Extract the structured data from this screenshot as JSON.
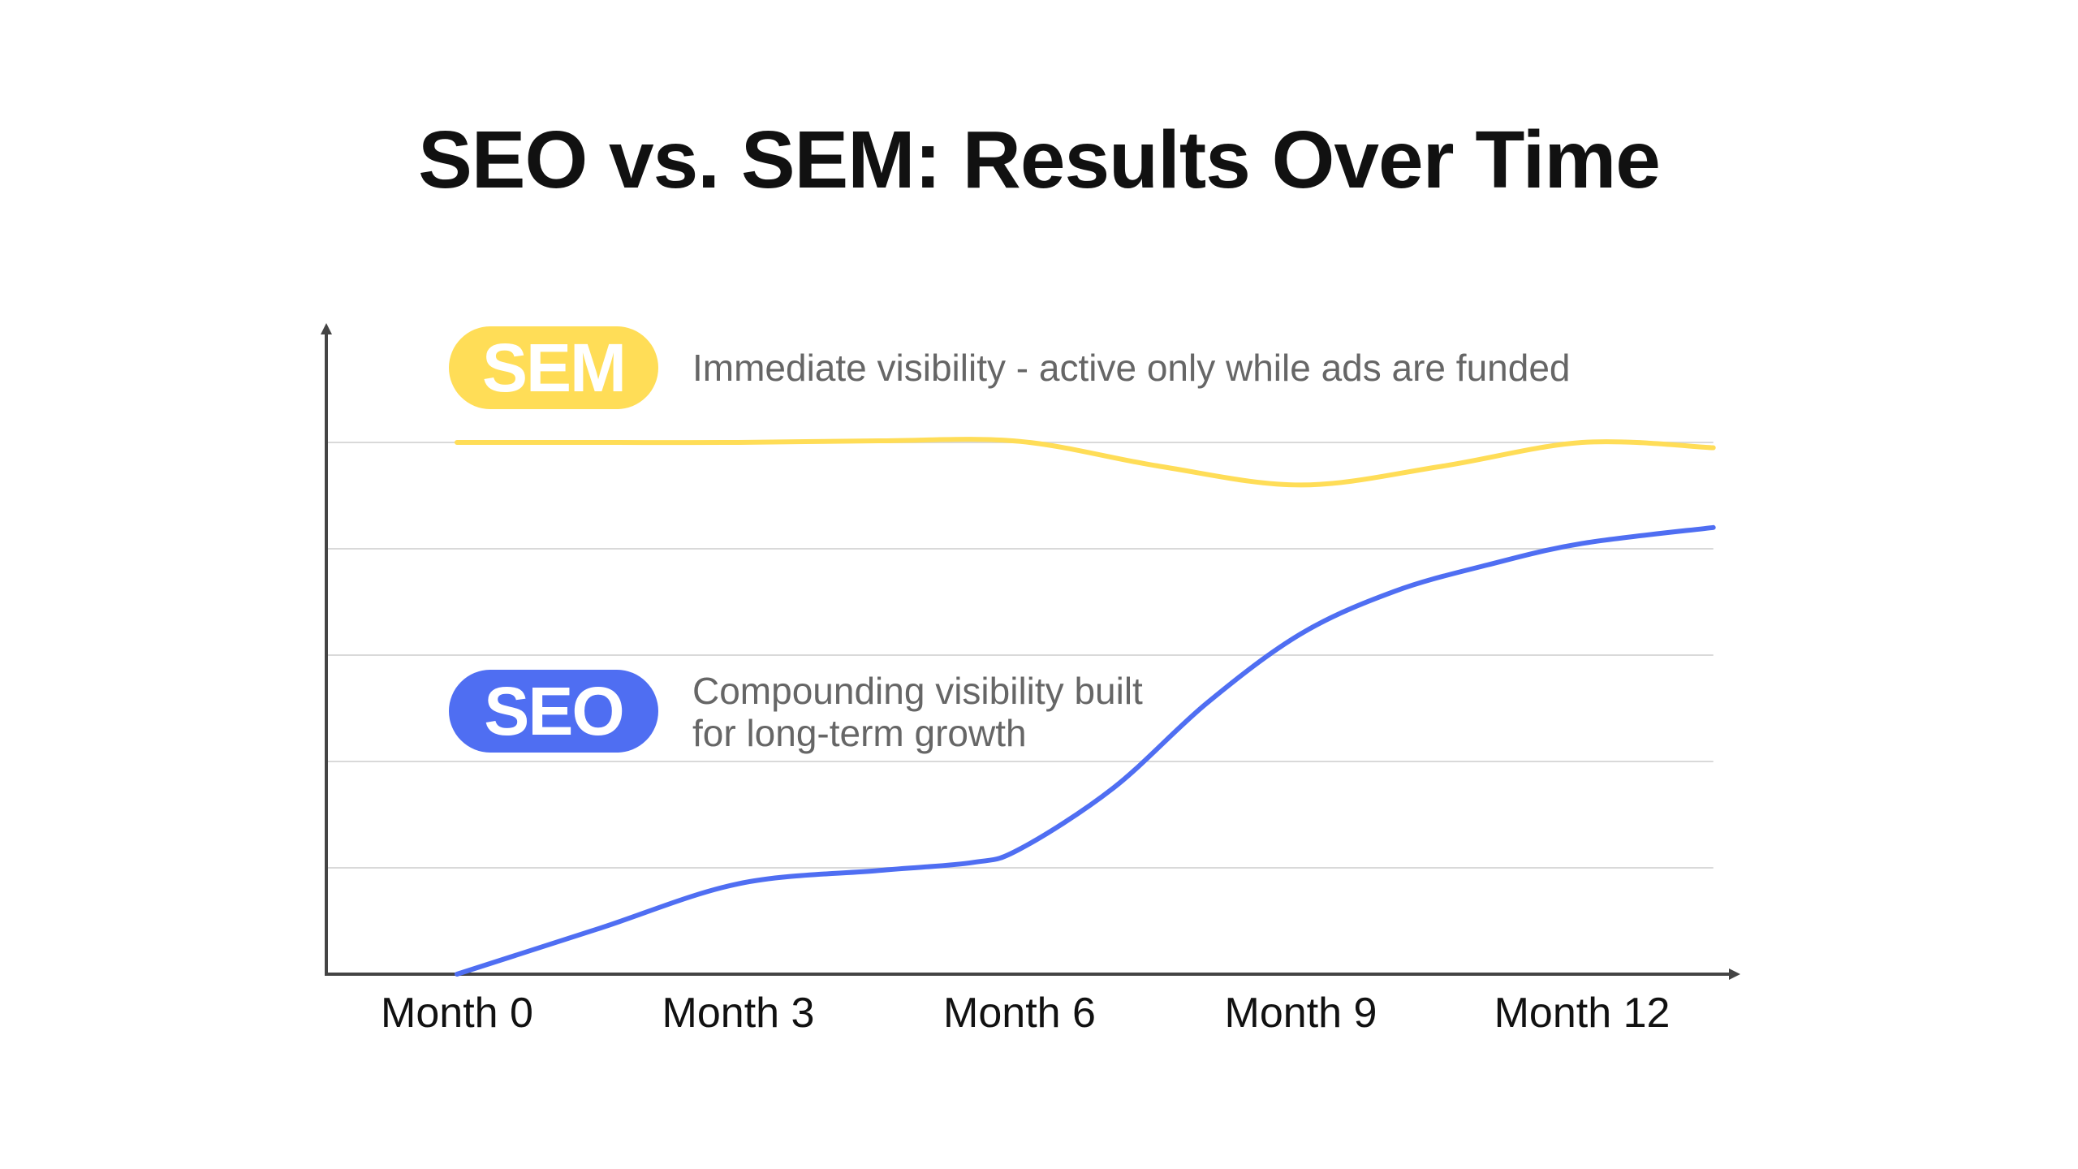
{
  "chart_data": {
    "type": "line",
    "title": "SEO vs. SEM: Results Over Time",
    "xlabel": "",
    "ylabel": "",
    "x_tick_labels": [
      "Month 0",
      "Month 3",
      "Month 6",
      "Month 9",
      "Month 12"
    ],
    "x_ticks": [
      0,
      3,
      6,
      9,
      12
    ],
    "xlim": [
      -1.4,
      13.4
    ],
    "ylim": [
      0,
      104
    ],
    "grid": true,
    "gridlines_y": [
      20,
      40,
      60,
      80,
      100
    ],
    "series": [
      {
        "name": "SEM",
        "label": "SEM",
        "description": "Immediate visibility - active only while ads are funded",
        "color": "#FFDD57",
        "x": [
          0,
          1.5,
          3,
          4.5,
          6,
          7.5,
          9,
          10.5,
          12,
          13.4
        ],
        "y": [
          100,
          100,
          100,
          100.3,
          100.2,
          95.5,
          92,
          95.5,
          100,
          99
        ]
      },
      {
        "name": "SEO",
        "label": "SEO",
        "description_lines": [
          "Compounding visibility built",
          "for long-term growth"
        ],
        "color": "#4F6EF2",
        "x": [
          0,
          1.5,
          3,
          4.5,
          5.5,
          6,
          7,
          8,
          9,
          10,
          11,
          12,
          13.4
        ],
        "y": [
          0,
          8.5,
          17,
          19.5,
          21,
          23.5,
          35,
          51,
          64,
          72,
          77,
          81,
          84
        ]
      }
    ]
  }
}
